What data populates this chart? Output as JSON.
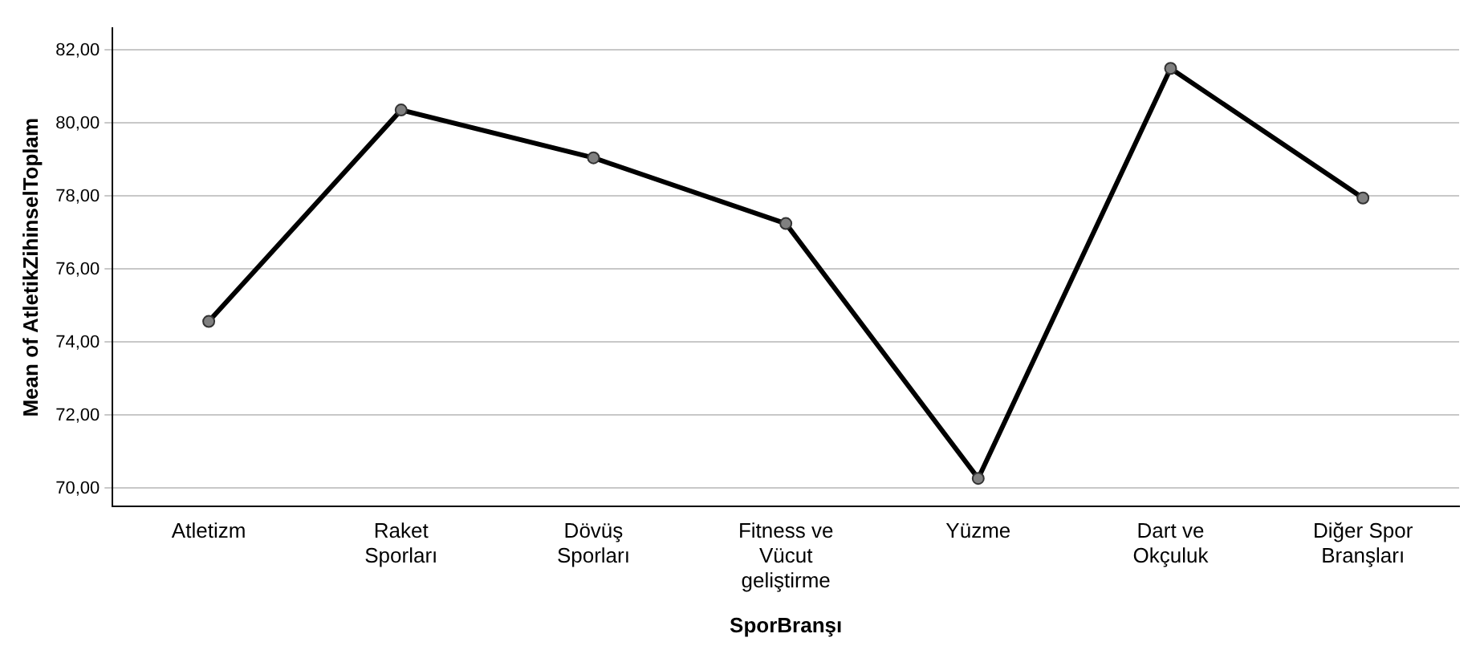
{
  "chart_data": {
    "type": "line",
    "xlabel": "SporBranşı",
    "ylabel": "Mean of AtletikZihinselToplam",
    "categories": [
      "Atletizm",
      "Raket Sporları",
      "Dövüş Sporları",
      "Fitness ve Vücut geliştirme",
      "Yüzme",
      "Dart ve Okçuluk",
      "Diğer Spor Branşları"
    ],
    "series": [
      {
        "color": "#000000",
        "values": [
          74.57,
          80.36,
          79.05,
          77.25,
          70.27,
          81.5,
          77.95
        ]
      }
    ],
    "ylim": [
      69.5,
      82.6
    ],
    "yticks": [
      {
        "value": 70,
        "label": "70,00"
      },
      {
        "value": 72,
        "label": "72,00"
      },
      {
        "value": 74,
        "label": "74,00"
      },
      {
        "value": 76,
        "label": "76,00"
      },
      {
        "value": 78,
        "label": "78,00"
      },
      {
        "value": 80,
        "label": "80,00"
      },
      {
        "value": 82,
        "label": "82,00"
      }
    ],
    "grid": "y",
    "legend": false,
    "marker": "circle",
    "line_style": "solid"
  }
}
